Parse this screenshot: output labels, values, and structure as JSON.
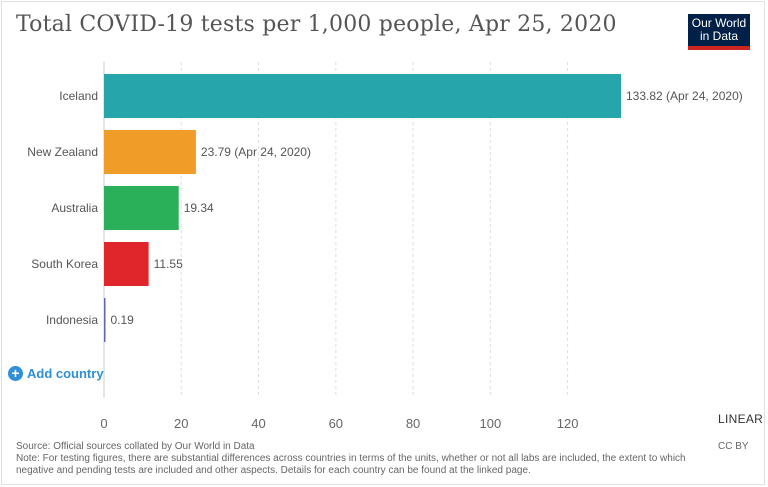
{
  "header": {
    "title": "Total COVID-19 tests per 1,000 people, Apr 25, 2020",
    "logo_line1": "Our World",
    "logo_line2": "in Data"
  },
  "controls": {
    "add_country": "Add country",
    "scale_toggle": "LINEAR"
  },
  "footer": {
    "source": "Source: Official sources collated by Our World in Data",
    "note": "Note: For testing figures, there are substantial differences across countries in terms of the units, whether or not all labs are included, the extent to which negative and pending tests are included and other aspects. Details for each country can be found at the linked page.",
    "license": "CC BY"
  },
  "colors": {
    "Iceland": "#26a6ab",
    "New Zealand": "#f09c28",
    "Australia": "#2bb05a",
    "South Korea": "#e0262b",
    "Indonesia": "#5b6aa8"
  },
  "chart_data": {
    "type": "bar",
    "orientation": "horizontal",
    "title": "Total COVID-19 tests per 1,000 people, Apr 25, 2020",
    "categories": [
      "Iceland",
      "New Zealand",
      "Australia",
      "South Korea",
      "Indonesia"
    ],
    "values": [
      133.82,
      23.79,
      19.34,
      11.55,
      0.19
    ],
    "value_labels": [
      "133.82 (Apr 24, 2020)",
      "23.79 (Apr 24, 2020)",
      "19.34",
      "11.55",
      "0.19"
    ],
    "xlim": [
      0,
      140
    ],
    "xticks": [
      0,
      20,
      40,
      60,
      80,
      100,
      120
    ],
    "grid": true,
    "xlabel": "",
    "ylabel": ""
  }
}
